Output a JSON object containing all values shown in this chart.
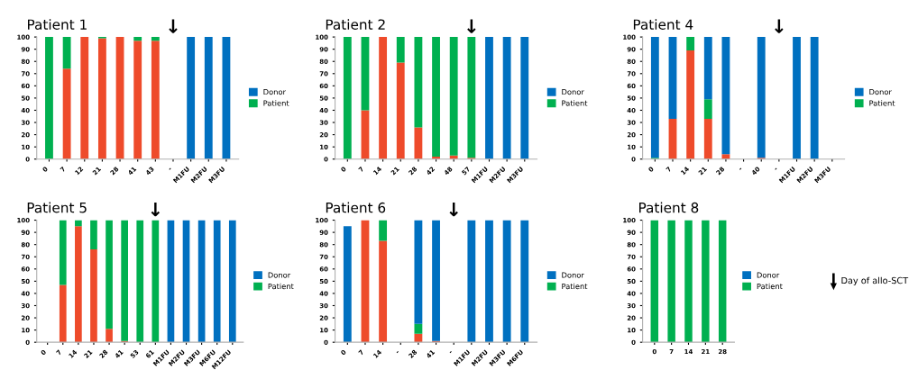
{
  "chart_data": [
    {
      "type": "bar",
      "title": "Patient 1",
      "stacked": true,
      "legend": "right",
      "ylim": [
        0,
        100
      ],
      "yticks": [
        0,
        10,
        20,
        30,
        40,
        50,
        60,
        70,
        80,
        90,
        100
      ],
      "categories": [
        "0",
        "7",
        "12",
        "21",
        "28",
        "41",
        "43",
        "-",
        "M1FU",
        "M2FU",
        "M3FU"
      ],
      "series": [
        {
          "color": "#ee4b2b",
          "values": [
            0,
            74,
            100,
            99,
            100,
            97,
            97,
            null,
            0,
            0,
            0
          ]
        },
        {
          "name": "Patient",
          "color": "#00b050",
          "values": [
            100,
            26,
            0,
            1,
            0,
            3,
            3,
            null,
            0,
            0,
            0
          ]
        },
        {
          "name": "Donor",
          "color": "#0070c0",
          "values": [
            0,
            0,
            0,
            0,
            0,
            0,
            0,
            null,
            100,
            100,
            100
          ]
        }
      ],
      "annotations": [
        "↓"
      ]
    },
    {
      "type": "bar",
      "title": "Patient 2",
      "stacked": true,
      "legend": "right",
      "ylim": [
        0,
        100
      ],
      "yticks": [
        0,
        10,
        20,
        30,
        40,
        50,
        60,
        70,
        80,
        90,
        100
      ],
      "categories": [
        "0",
        "7",
        "14",
        "21",
        "28",
        "42",
        "48",
        "57",
        "M1FU",
        "M2FU",
        "M3FU"
      ],
      "series": [
        {
          "color": "#ee4b2b",
          "values": [
            0,
            40,
            100,
            79,
            26,
            2,
            3,
            1,
            0,
            0,
            0
          ]
        },
        {
          "name": "Patient",
          "color": "#00b050",
          "values": [
            100,
            60,
            0,
            21,
            74,
            98,
            97,
            99,
            0,
            0,
            0
          ]
        },
        {
          "name": "Donor",
          "color": "#0070c0",
          "values": [
            0,
            0,
            0,
            0,
            0,
            0,
            0,
            0,
            100,
            100,
            100
          ]
        }
      ],
      "annotations": [
        {
          "text": "↓",
          "x": "57",
          "y": 100
        }
      ]
    },
    {
      "type": "bar",
      "title": "Patient 4",
      "stacked": true,
      "legend": "right",
      "ylim": [
        0,
        100
      ],
      "yticks": [
        0,
        10,
        20,
        30,
        40,
        50,
        60,
        70,
        80,
        90,
        100
      ],
      "categories": [
        "0",
        "7",
        "14",
        "21",
        "28",
        "-",
        "40",
        "-",
        "M1FU",
        "M2FU",
        "M3FU"
      ],
      "series": [
        {
          "color": "#ee4b2b",
          "values": [
            0,
            33,
            89,
            33,
            4,
            null,
            1,
            null,
            0,
            0,
            null
          ]
        },
        {
          "name": "Patient",
          "color": "#00b050",
          "values": [
            1,
            0,
            11,
            16,
            0,
            null,
            0,
            null,
            0,
            0,
            null
          ]
        },
        {
          "name": "Donor",
          "color": "#0070c0",
          "values": [
            99,
            67,
            0,
            51,
            96,
            null,
            99,
            null,
            100,
            100,
            null
          ]
        }
      ],
      "annotations": [
        "↓"
      ]
    },
    {
      "type": "bar",
      "title": "Patient 5",
      "stacked": true,
      "legend": "right",
      "ylim": [
        0,
        100
      ],
      "yticks": [
        0,
        10,
        20,
        30,
        40,
        50,
        60,
        70,
        80,
        90,
        100
      ],
      "categories": [
        "0",
        "7",
        "14",
        "21",
        "28",
        "41",
        "53",
        "61",
        "M1FU",
        "M2FU",
        "M3FU",
        "M6FU",
        "M12FU"
      ],
      "series": [
        {
          "color": "#ee4b2b",
          "values": [
            null,
            47,
            95,
            76,
            11,
            1,
            0,
            0,
            0,
            0,
            0,
            0,
            0
          ]
        },
        {
          "name": "Patient",
          "color": "#00b050",
          "values": [
            null,
            53,
            5,
            24,
            89,
            99,
            100,
            100,
            0,
            0,
            0,
            0,
            0
          ]
        },
        {
          "name": "Donor",
          "color": "#0070c0",
          "values": [
            null,
            0,
            0,
            0,
            0,
            0,
            0,
            0,
            100,
            100,
            100,
            100,
            100
          ]
        }
      ],
      "annotations": [
        {
          "text": "↓",
          "x": "61",
          "y": 100
        }
      ]
    },
    {
      "type": "bar",
      "title": "Patient 6",
      "stacked": true,
      "legend": "right",
      "ylim": [
        0,
        100
      ],
      "yticks": [
        0,
        10,
        20,
        30,
        40,
        50,
        60,
        70,
        80,
        90,
        100
      ],
      "categories": [
        "0",
        "7",
        "14",
        "-",
        "28",
        "41",
        "-",
        "M1FU",
        "M2FU",
        "M3FU",
        "M6FU"
      ],
      "series": [
        {
          "color": "#ee4b2b",
          "values": [
            0,
            100,
            83,
            null,
            7,
            1,
            null,
            0,
            0,
            0,
            0
          ]
        },
        {
          "name": "Patient",
          "color": "#00b050",
          "values": [
            0,
            0,
            17,
            null,
            8,
            0,
            null,
            0,
            0,
            0,
            0
          ]
        },
        {
          "name": "Donor",
          "color": "#0070c0",
          "values": [
            95,
            0,
            0,
            null,
            85,
            99,
            null,
            100,
            100,
            100,
            100
          ]
        }
      ],
      "annotations": [
        "↓"
      ]
    },
    {
      "type": "bar",
      "title": "Patient 8",
      "stacked": true,
      "legend": "right",
      "ylim": [
        0,
        100
      ],
      "yticks": [
        0,
        10,
        20,
        30,
        40,
        50,
        60,
        70,
        80,
        90,
        100
      ],
      "categories": [
        "0",
        "7",
        "14",
        "21",
        "28"
      ],
      "series": [
        {
          "color": "#ee4b2b",
          "values": [
            0,
            0,
            0,
            0,
            0
          ]
        },
        {
          "name": "Patient",
          "color": "#00b050",
          "values": [
            100,
            100,
            100,
            100,
            100
          ]
        },
        {
          "name": "Donor",
          "color": "#0070c0",
          "values": [
            0,
            0,
            0,
            0,
            0
          ]
        }
      ],
      "annotations": [
        "Day of allo-SCT"
      ]
    }
  ]
}
